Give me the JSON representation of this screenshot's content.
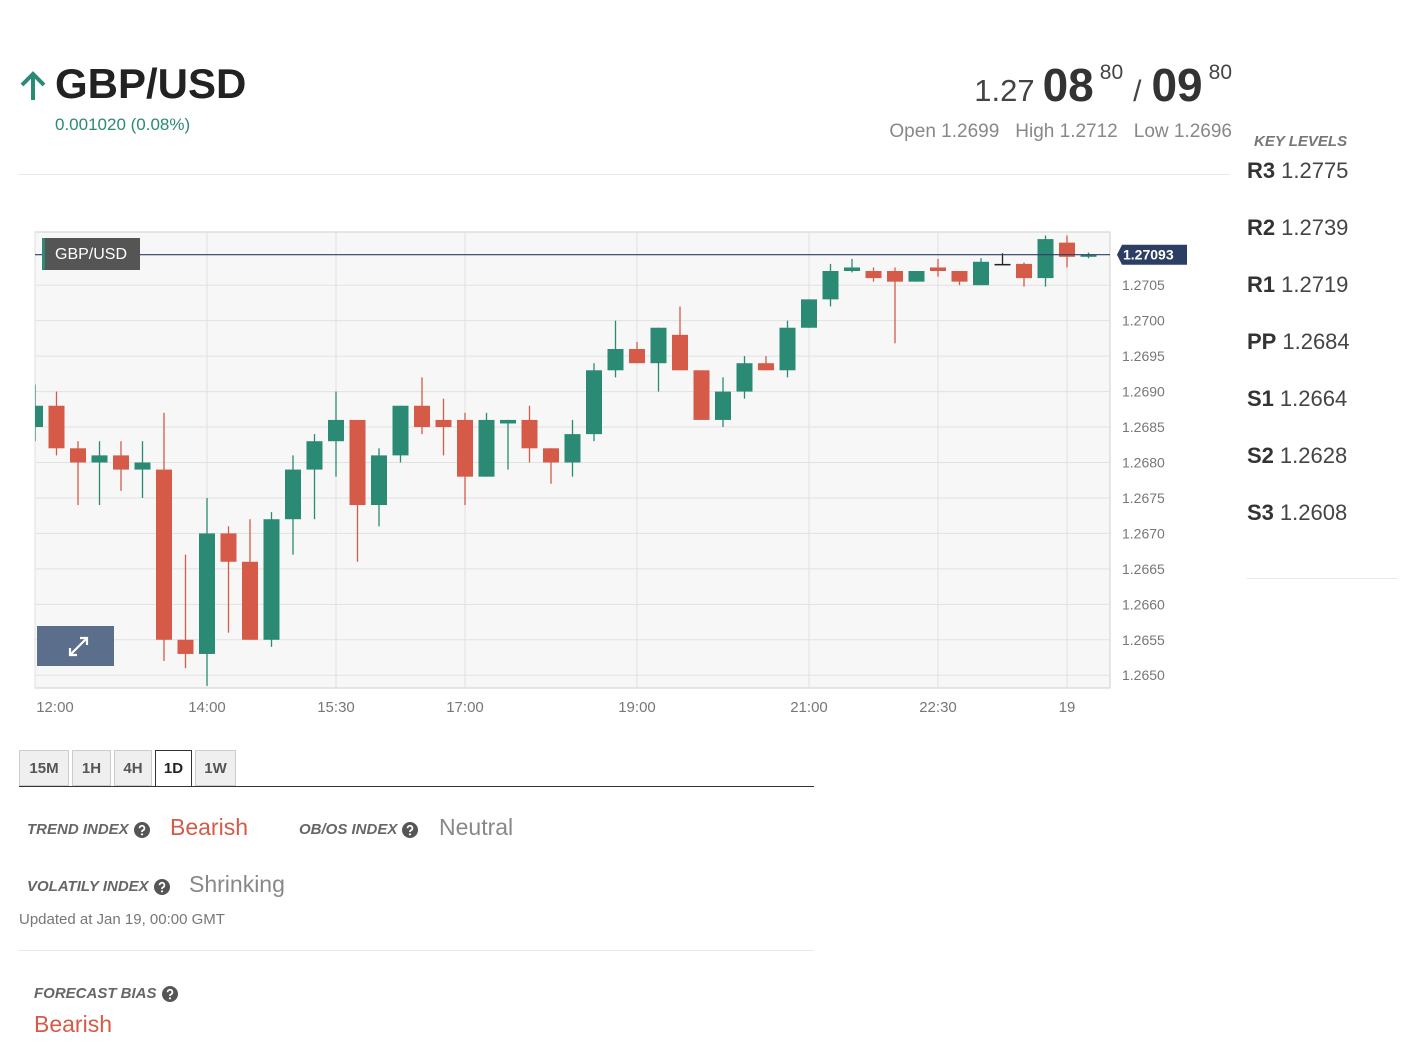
{
  "header": {
    "pair": "GBP/USD",
    "change": "0.001020 (0.08%)",
    "bid": {
      "big": "1.27",
      "pips": "08",
      "fraction": "80"
    },
    "separator": "/",
    "ask": {
      "pips": "09",
      "fraction": "80"
    },
    "open": "Open 1.2699",
    "high": "High 1.2712",
    "low": "Low 1.2696"
  },
  "key_levels": {
    "title": "KEY LEVELS",
    "levels": [
      {
        "name": "R3",
        "value": "1.2775"
      },
      {
        "name": "R2",
        "value": "1.2739"
      },
      {
        "name": "R1",
        "value": "1.2719"
      },
      {
        "name": "PP",
        "value": "1.2684"
      },
      {
        "name": "S1",
        "value": "1.2664"
      },
      {
        "name": "S2",
        "value": "1.2628"
      },
      {
        "name": "S3",
        "value": "1.2608"
      }
    ]
  },
  "chart_data": {
    "type": "candlestick",
    "categories": [
      "12:00",
      null,
      null,
      null,
      null,
      null,
      null,
      null,
      "14:00",
      null,
      null,
      null,
      null,
      null,
      "15:30",
      null,
      null,
      null,
      null,
      null,
      "17:00",
      null,
      null,
      null,
      null,
      null,
      null,
      null,
      "19:00",
      null,
      null,
      null,
      null,
      null,
      null,
      null,
      "21:00",
      null,
      null,
      null,
      null,
      null,
      "22:30",
      null,
      null,
      null,
      null,
      null,
      "19",
      null
    ],
    "series": [
      {
        "name": "GBP/USD",
        "open": [
          1.2685,
          1.2688,
          1.2682,
          1.268,
          1.2681,
          1.2679,
          1.2679,
          1.2655,
          1.2653,
          1.267,
          1.2666,
          1.2655,
          1.2672,
          1.2679,
          1.2683,
          1.2686,
          1.2674,
          1.2681,
          1.2688,
          1.2686,
          1.2686,
          1.2678,
          1.26855,
          1.2686,
          1.2682,
          1.268,
          1.2684,
          1.2693,
          1.2696,
          1.2694,
          1.2698,
          1.2693,
          1.2686,
          1.269,
          1.2694,
          1.2693,
          1.2699,
          1.2703,
          1.2707,
          1.2707,
          1.2707,
          1.27055,
          1.27075,
          1.2707,
          1.2705,
          1.2708,
          1.2708,
          1.2706,
          1.2711,
          1.2709
        ],
        "high": [
          1.2691,
          1.269,
          1.2683,
          1.2683,
          1.2683,
          1.2683,
          1.2687,
          1.2667,
          1.2675,
          1.2671,
          1.2672,
          1.2673,
          1.2681,
          1.2684,
          1.269,
          1.2686,
          1.2682,
          1.2688,
          1.2692,
          1.2689,
          1.2687,
          1.2687,
          1.2686,
          1.2688,
          1.2682,
          1.2686,
          1.2694,
          1.27,
          1.2697,
          1.2699,
          1.2702,
          1.2693,
          1.2692,
          1.2695,
          1.2695,
          1.27,
          1.2703,
          1.2708,
          1.27087,
          1.27075,
          1.27075,
          1.2707,
          1.27087,
          1.2707,
          1.27088,
          1.27095,
          1.27082,
          1.2712,
          1.2712,
          1.27096
        ],
        "low": [
          1.2683,
          1.2681,
          1.2674,
          1.2674,
          1.2676,
          1.2675,
          1.2652,
          1.2651,
          1.26485,
          1.2656,
          1.2655,
          1.2654,
          1.2667,
          1.2672,
          1.2678,
          1.2666,
          1.2671,
          1.268,
          1.2684,
          1.2681,
          1.2674,
          1.2678,
          1.2679,
          1.268,
          1.2677,
          1.2678,
          1.2683,
          1.2692,
          1.2694,
          1.269,
          1.2693,
          1.2686,
          1.2685,
          1.2689,
          1.2693,
          1.2692,
          1.2699,
          1.2702,
          1.27068,
          1.27055,
          1.26968,
          1.27055,
          1.27062,
          1.2705,
          1.2705,
          1.27078,
          1.27048,
          1.27048,
          1.27075,
          1.27088
        ],
        "close": [
          1.2688,
          1.2682,
          1.268,
          1.2681,
          1.2679,
          1.268,
          1.2655,
          1.2653,
          1.267,
          1.2666,
          1.2655,
          1.2672,
          1.2679,
          1.2683,
          1.2686,
          1.2674,
          1.2681,
          1.2688,
          1.2685,
          1.2685,
          1.2678,
          1.2686,
          1.2686,
          1.2682,
          1.268,
          1.2684,
          1.2693,
          1.2696,
          1.2694,
          1.2699,
          1.2693,
          1.2686,
          1.269,
          1.2694,
          1.2693,
          1.2699,
          1.2703,
          1.2707,
          1.27075,
          1.2706,
          1.27055,
          1.2707,
          1.2707,
          1.27055,
          1.27083,
          1.2708,
          1.2706,
          1.27115,
          1.2709,
          1.27093
        ]
      }
    ],
    "up_color": "#2b8a73",
    "down_color": "#d65a48",
    "flat_color": "#222222",
    "last_price": 1.27093,
    "ylim": [
      1.26482,
      1.27125
    ],
    "yticks": [
      {
        "value": 1.265,
        "label": "1.2650"
      },
      1.2655,
      {
        "value": 1.266,
        "label": "1.2660"
      },
      1.2665,
      {
        "value": 1.267,
        "label": "1.2670"
      },
      1.2675,
      {
        "value": 1.268,
        "label": "1.2680"
      },
      1.2685,
      {
        "value": 1.269,
        "label": "1.2690"
      },
      1.2695,
      {
        "value": 1.27,
        "label": "1.2700"
      },
      1.2705
    ],
    "grid": true
  },
  "tabs": [
    "15M",
    "1H",
    "4H",
    "1D",
    "1W"
  ],
  "active_tab": 3,
  "indices": {
    "trend": {
      "label": "TREND INDEX",
      "value": "Bearish"
    },
    "obos": {
      "label": "OB/OS INDEX",
      "value": "Neutral"
    },
    "volatility": {
      "label": "VOLATILY INDEX",
      "value": "Shrinking"
    },
    "updated": "Updated at Jan 19, 00:00 GMT"
  },
  "forecast": {
    "label": "FORECAST BIAS",
    "value": "Bearish"
  }
}
